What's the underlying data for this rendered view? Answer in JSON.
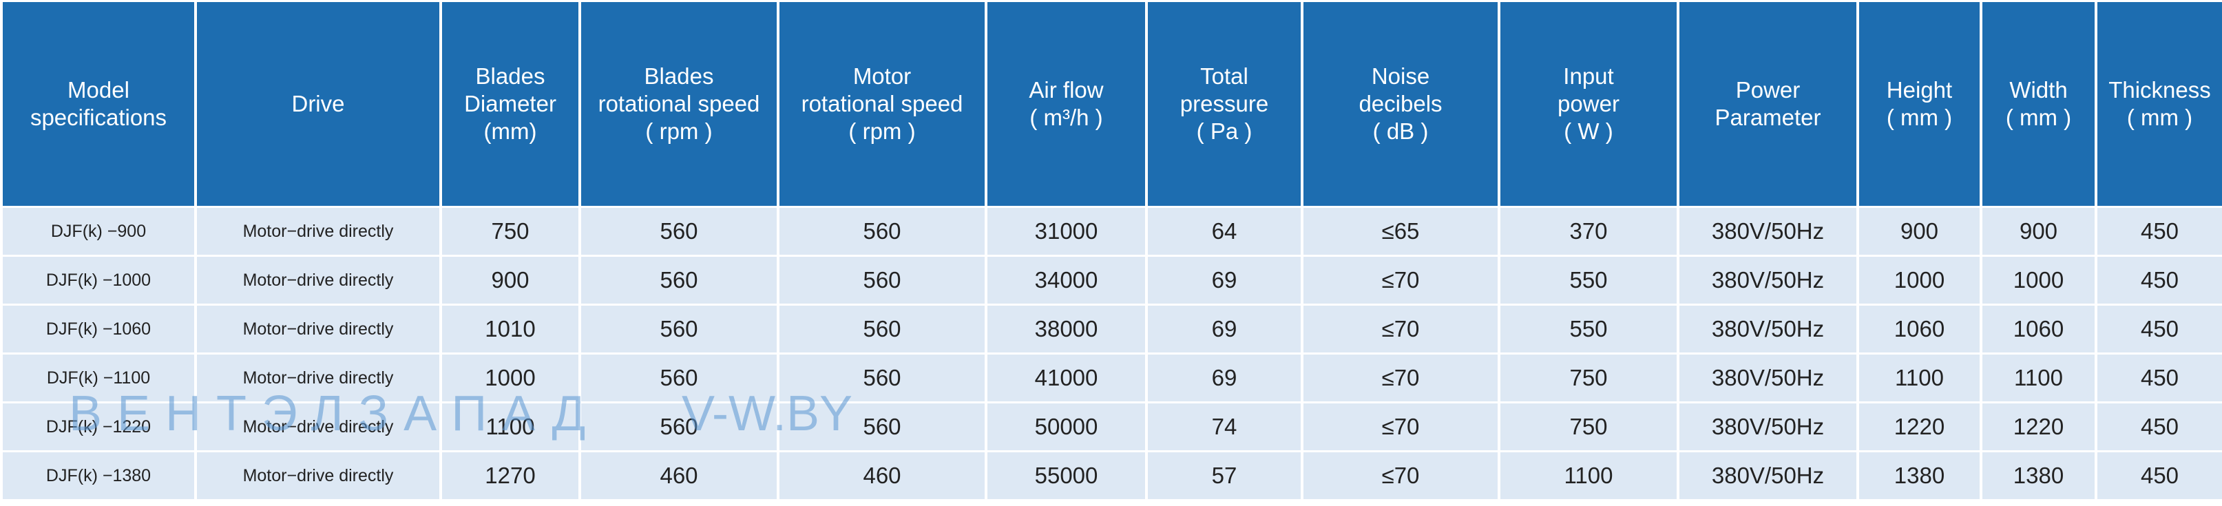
{
  "table": {
    "header": [
      "Model\nspecifications",
      "Drive",
      "Blades\nDiameter\n(mm)",
      "Blades\nrotational speed\n( rpm )",
      "Motor\nrotational speed\n( rpm )",
      "Air flow\n( m³/h )\n ",
      "Total\npressure\n( Pa )",
      "Noise\ndecibels\n( dB )",
      "Input\npower\n( W )",
      "Power\nParameter",
      "Height\n( mm )",
      "Width\n( mm )",
      "Thickness\n( mm )"
    ],
    "rows": [
      [
        "DJF(k) −900",
        "Motor−drive directly",
        "750",
        "560",
        "560",
        "31000",
        "64",
        "≤65",
        "370",
        "380V/50Hz",
        "900",
        "900",
        "450"
      ],
      [
        "DJF(k) −1000",
        "Motor−drive directly",
        "900",
        "560",
        "560",
        "34000",
        "69",
        "≤70",
        "550",
        "380V/50Hz",
        "1000",
        "1000",
        "450"
      ],
      [
        "DJF(k) −1060",
        "Motor−drive directly",
        "1010",
        "560",
        "560",
        "38000",
        "69",
        "≤70",
        "550",
        "380V/50Hz",
        "1060",
        "1060",
        "450"
      ],
      [
        "DJF(k) −1100",
        "Motor−drive directly",
        "1000",
        "560",
        "560",
        "41000",
        "69",
        "≤70",
        "750",
        "380V/50Hz",
        "1100",
        "1100",
        "450"
      ],
      [
        "DJF(k) −1220",
        "Motor−drive directly",
        "1100",
        "560",
        "560",
        "50000",
        "74",
        "≤70",
        "750",
        "380V/50Hz",
        "1220",
        "1220",
        "450"
      ],
      [
        "DJF(k) −1380",
        "Motor−drive directly",
        "1270",
        "460",
        "460",
        "55000",
        "57",
        "≤70",
        "1100",
        "380V/50Hz",
        "1380",
        "1380",
        "450"
      ]
    ]
  },
  "watermark": {
    "brand": "ВЕНТЭЛЗАПАД",
    "site": "V-W.BY"
  }
}
